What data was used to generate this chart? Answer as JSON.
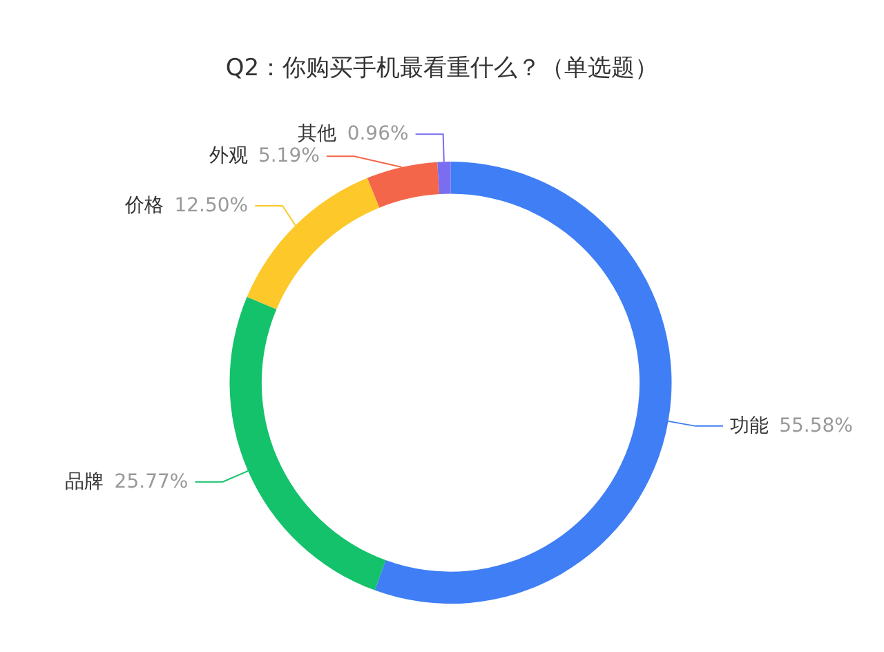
{
  "chart_data": {
    "type": "donut",
    "title": "Q2：你购买手机最看重什么？（单选题）",
    "categories": [
      "功能",
      "品牌",
      "价格",
      "外观",
      "其他"
    ],
    "values": [
      55.58,
      25.77,
      12.5,
      5.19,
      0.96
    ],
    "value_labels": [
      "55.58%",
      "25.77%",
      "12.50%",
      "5.19%",
      "0.96%"
    ],
    "colors": [
      "#3f7ef5",
      "#13c26b",
      "#fdc82a",
      "#f4664a",
      "#7b6df0"
    ],
    "legend": false
  }
}
